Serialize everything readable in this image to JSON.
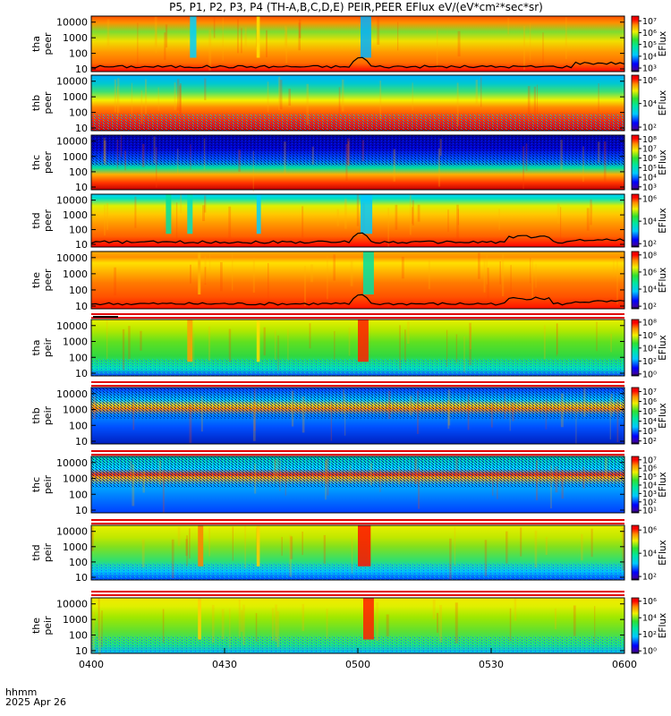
{
  "title": "P5, P1, P2, P3, P4 (TH-A,B,C,D,E) PEIR,PEER EFlux eV/(eV*cm²*sec*sr)",
  "corner": {
    "line1": "hhmm",
    "line2": "2025 Apr 26"
  },
  "chart_data": {
    "type": "heatmap",
    "x_ticks": [
      "0400",
      "0430",
      "0500",
      "0530",
      "0600"
    ],
    "x_range": [
      "04:00",
      "06:00"
    ],
    "y_scale": "log",
    "y_ticks": [
      "10",
      "100",
      "1000",
      "10000"
    ],
    "colorbar_label": "EFlux",
    "panels": [
      {
        "probe": "tha",
        "instrument": "peer",
        "cbar_ticks": [
          "10³",
          "10⁴",
          "10⁵",
          "10⁶",
          "10⁷"
        ],
        "cbar_exp": [
          3,
          4,
          5,
          6,
          7
        ],
        "has_trace": true,
        "gap": false
      },
      {
        "probe": "thb",
        "instrument": "peer",
        "cbar_ticks": [
          "10²",
          "10⁴",
          "10⁶"
        ],
        "cbar_exp": [
          2,
          4,
          6
        ],
        "has_trace": false,
        "gap": false
      },
      {
        "probe": "thc",
        "instrument": "peer",
        "cbar_ticks": [
          "10³",
          "10⁴",
          "10⁵",
          "10⁶",
          "10⁷",
          "10⁸"
        ],
        "cbar_exp": [
          3,
          4,
          5,
          6,
          7,
          8
        ],
        "has_trace": false,
        "gap": false
      },
      {
        "probe": "thd",
        "instrument": "peer",
        "cbar_ticks": [
          "10²",
          "10⁴",
          "10⁶"
        ],
        "cbar_exp": [
          2,
          4,
          6
        ],
        "has_trace": true,
        "gap": false
      },
      {
        "probe": "the",
        "instrument": "peer",
        "cbar_ticks": [
          "10²",
          "10⁴",
          "10⁶",
          "10⁸"
        ],
        "cbar_exp": [
          2,
          4,
          6,
          8
        ],
        "has_trace": true,
        "gap": false
      },
      {
        "probe": "tha",
        "instrument": "peir",
        "cbar_ticks": [
          "10⁰",
          "10²",
          "10⁴",
          "10⁶",
          "10⁸"
        ],
        "cbar_exp": [
          0,
          2,
          4,
          6,
          8
        ],
        "has_trace": false,
        "gap": true
      },
      {
        "probe": "thb",
        "instrument": "peir",
        "cbar_ticks": [
          "10²",
          "10³",
          "10⁴",
          "10⁵",
          "10⁶",
          "10⁷"
        ],
        "cbar_exp": [
          2,
          3,
          4,
          5,
          6,
          7
        ],
        "has_trace": false,
        "gap": true
      },
      {
        "probe": "thc",
        "instrument": "peir",
        "cbar_ticks": [
          "10¹",
          "10²",
          "10³",
          "10⁴",
          "10⁵",
          "10⁶",
          "10⁷"
        ],
        "cbar_exp": [
          1,
          2,
          3,
          4,
          5,
          6,
          7
        ],
        "has_trace": false,
        "gap": true
      },
      {
        "probe": "thd",
        "instrument": "peir",
        "cbar_ticks": [
          "10²",
          "10⁴",
          "10⁶"
        ],
        "cbar_exp": [
          2,
          4,
          6
        ],
        "has_trace": false,
        "gap": true
      },
      {
        "probe": "the",
        "instrument": "peir",
        "cbar_ticks": [
          "10⁰",
          "10²",
          "10⁴",
          "10⁶"
        ],
        "cbar_exp": [
          0,
          2,
          4,
          6
        ],
        "has_trace": false,
        "gap": true
      }
    ]
  }
}
